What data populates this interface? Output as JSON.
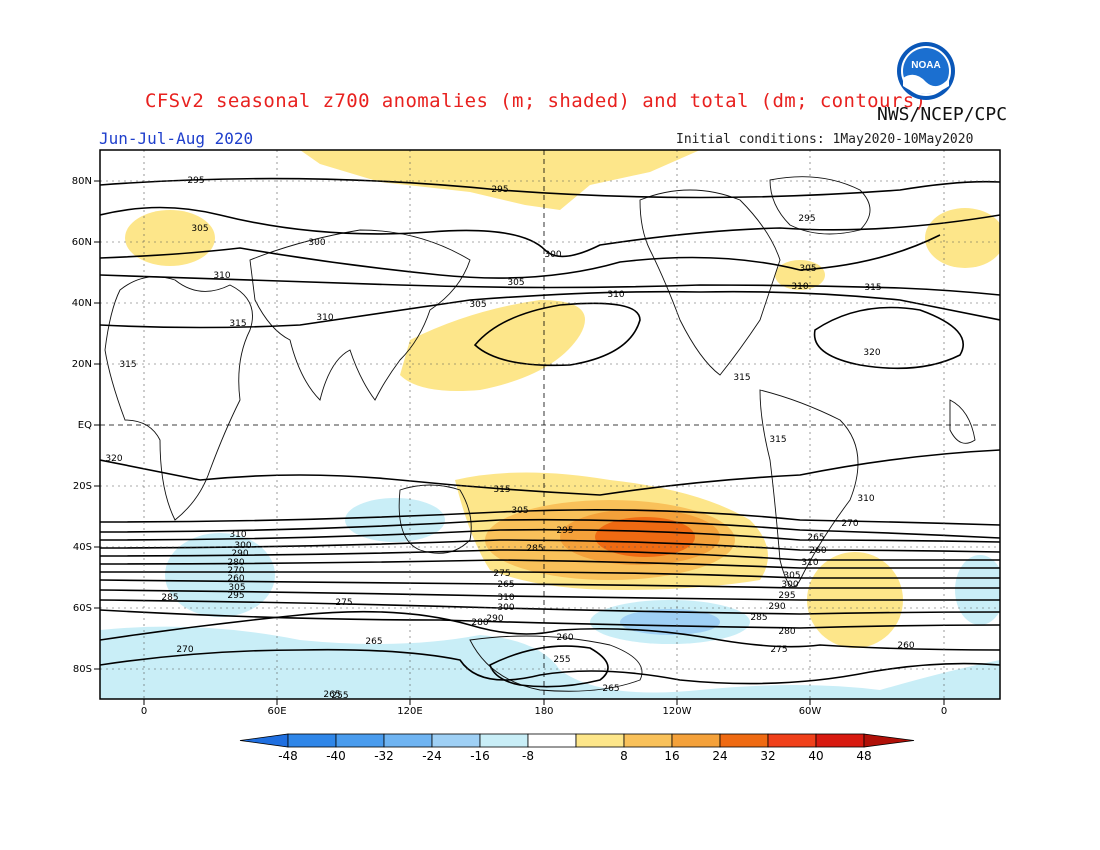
{
  "title": "CFSv2 seasonal z700 anomalies (m; shaded) and total (dm; contours)",
  "agency": "NWS/NCEP/CPC",
  "season": "Jun-Jul-Aug 2020",
  "initial_conditions": "Initial conditions: 1May2020-10May2020",
  "logo_text": "NOAA",
  "map": {
    "lat_ticks": [
      "80N",
      "60N",
      "40N",
      "20N",
      "EQ",
      "20S",
      "40S",
      "60S",
      "80S"
    ],
    "lon_ticks": [
      "0",
      "60E",
      "120E",
      "180",
      "120W",
      "60W",
      "0"
    ],
    "contour_labels": [
      "295",
      "295",
      "295",
      "305",
      "300",
      "300",
      "305",
      "305",
      "310",
      "310",
      "305",
      "310",
      "315",
      "315",
      "310",
      "315",
      "315",
      "320",
      "320",
      "315",
      "315",
      "310",
      "310",
      "305",
      "300",
      "295",
      "290",
      "285",
      "280",
      "275",
      "270",
      "265",
      "260",
      "310",
      "305",
      "300",
      "295",
      "290",
      "285",
      "280",
      "275",
      "270",
      "265",
      "260",
      "310",
      "305",
      "300",
      "295",
      "290",
      "285",
      "280",
      "275",
      "270",
      "265",
      "260",
      "265",
      "260",
      "255",
      "255",
      "265",
      "260",
      "255"
    ]
  },
  "colorbar": {
    "ticks": [
      "-48",
      "-40",
      "-32",
      "-24",
      "-16",
      "-8",
      "8",
      "16",
      "24",
      "32",
      "40",
      "48"
    ],
    "colors": [
      "#1f6fe0",
      "#2f86e8",
      "#4a9cee",
      "#6fb4f2",
      "#9fd0f5",
      "#c9eef7",
      "#ffffff",
      "#fde68a",
      "#f9c15a",
      "#f4a13a",
      "#ef6a12",
      "#f0401a",
      "#d81a10",
      "#b01008"
    ]
  }
}
